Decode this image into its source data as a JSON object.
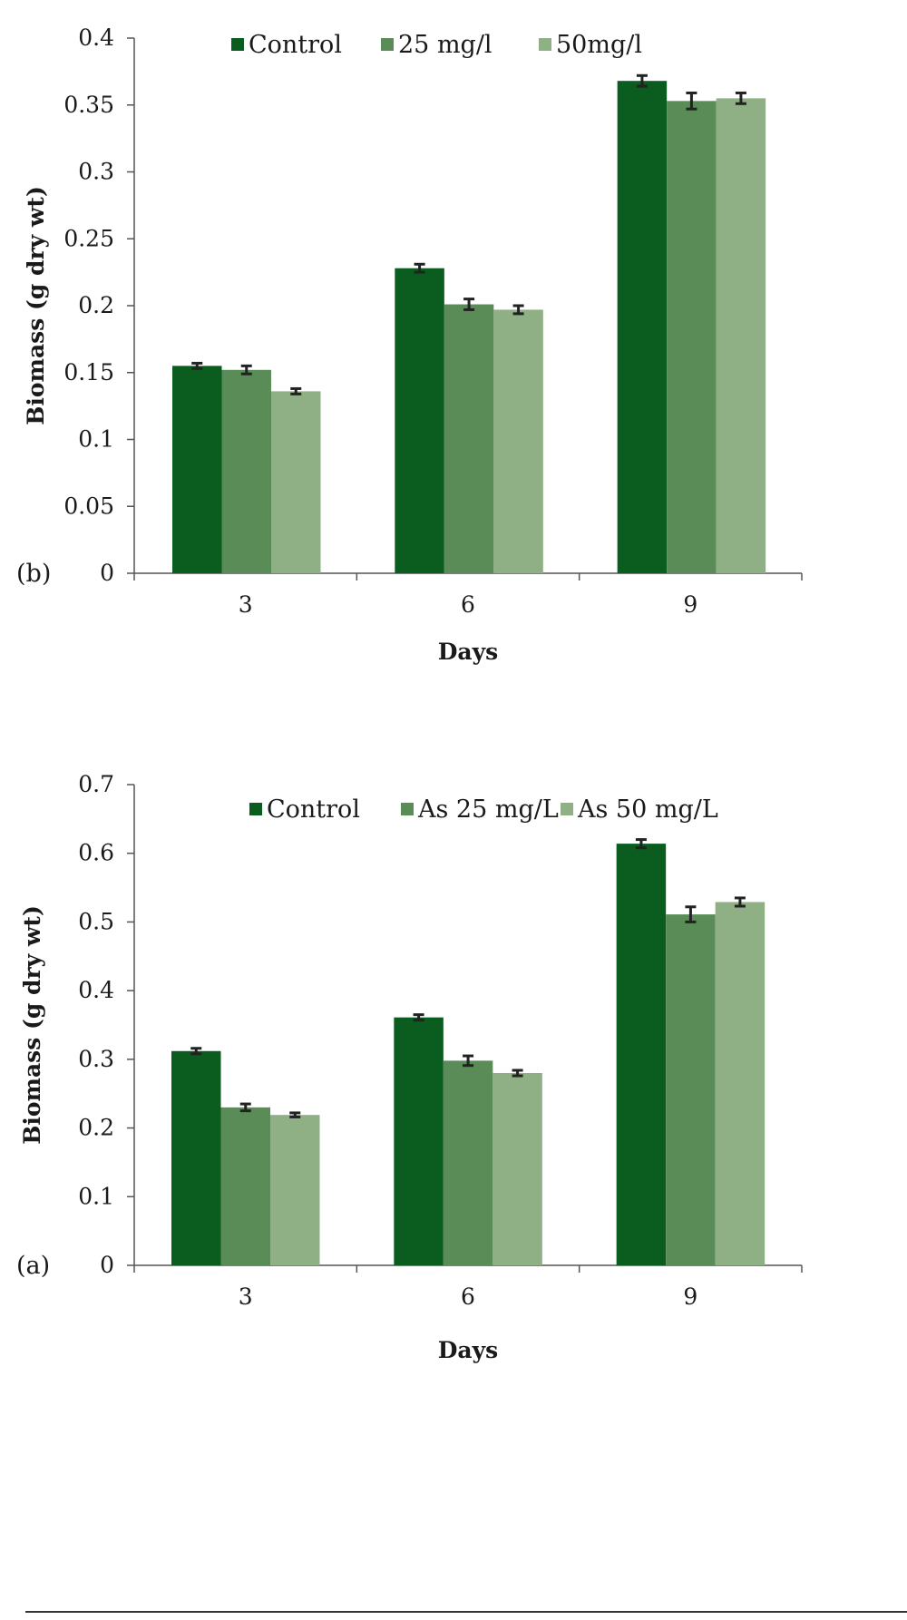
{
  "chart_data": [
    {
      "type": "bar",
      "panel_label": "(b)",
      "categories": [
        "3",
        "6",
        "9"
      ],
      "series": [
        {
          "name": "Control",
          "values": [
            0.155,
            0.228,
            0.368
          ],
          "errors": [
            0.002,
            0.003,
            0.004
          ],
          "color": "#0a5c1f"
        },
        {
          "name": "25 mg/l",
          "values": [
            0.152,
            0.201,
            0.353
          ],
          "errors": [
            0.003,
            0.004,
            0.006
          ],
          "color": "#5a8c57"
        },
        {
          "name": "50mg/l",
          "values": [
            0.136,
            0.197,
            0.355
          ],
          "errors": [
            0.002,
            0.003,
            0.004
          ],
          "color": "#8faf85"
        }
      ],
      "xlabel": "Days",
      "ylabel": "Biomass (g dry wt)",
      "ylim": [
        0,
        0.4
      ],
      "yticks": [
        "0",
        "0.05",
        "0.1",
        "0.15",
        "0.2",
        "0.25",
        "0.3",
        "0.35",
        "0.4"
      ],
      "grid": false,
      "legend_position": "top"
    },
    {
      "type": "bar",
      "panel_label": "(a)",
      "categories": [
        "3",
        "6",
        "9"
      ],
      "series": [
        {
          "name": "Control",
          "values": [
            0.312,
            0.361,
            0.614
          ],
          "errors": [
            0.004,
            0.004,
            0.006
          ],
          "color": "#0a5c1f"
        },
        {
          "name": "As 25 mg/L",
          "values": [
            0.23,
            0.298,
            0.511
          ],
          "errors": [
            0.005,
            0.007,
            0.011
          ],
          "color": "#5a8c57"
        },
        {
          "name": "As 50 mg/L",
          "values": [
            0.219,
            0.28,
            0.529
          ],
          "errors": [
            0.003,
            0.004,
            0.006
          ],
          "color": "#8faf85"
        }
      ],
      "xlabel": "Days",
      "ylabel": "Biomass (g dry wt)",
      "ylim": [
        0,
        0.7
      ],
      "yticks": [
        "0",
        "0.1",
        "0.2",
        "0.3",
        "0.4",
        "0.5",
        "0.6",
        "0.7"
      ],
      "grid": false,
      "legend_position": "top"
    }
  ]
}
